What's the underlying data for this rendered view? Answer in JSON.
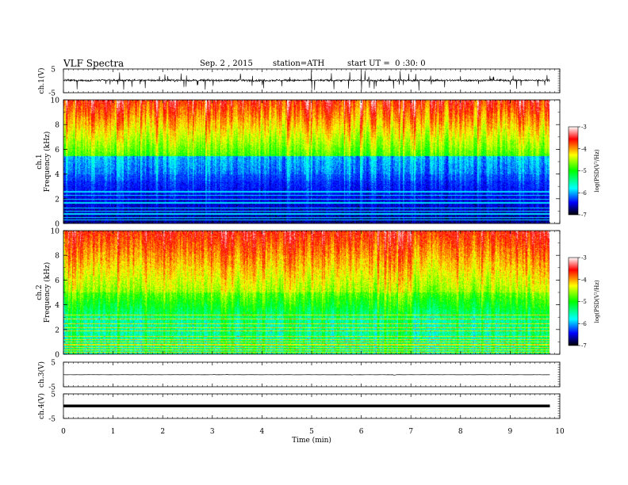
{
  "header": {
    "title": "VLF Spectra",
    "date": "Sep. 2 , 2015",
    "station": "station=ATH",
    "start_ut": "start UT =  0 :30: 0"
  },
  "chart_data": [
    {
      "type": "line",
      "panel": "ch1-waveform",
      "ylabel": "ch.1(V)",
      "ylim": [
        -5,
        5
      ],
      "y_ticks": [
        "5",
        "-5"
      ],
      "xlim": [
        0,
        10
      ]
    },
    {
      "type": "heatmap",
      "panel": "ch1-spectrogram",
      "ylabel_lines": [
        "ch.1",
        "Frequency  (kHz)"
      ],
      "ylim": [
        0,
        10
      ],
      "y_ticks": [
        0,
        2,
        4,
        6,
        8,
        10
      ],
      "xlim": [
        0,
        10
      ],
      "colorbar": {
        "label": "log(PSD(V²/Hz)",
        "range": [
          -7,
          -3
        ],
        "ticks": [
          "-3",
          "-4",
          "-5",
          "-6",
          "-7"
        ]
      }
    },
    {
      "type": "heatmap",
      "panel": "ch2-spectrogram",
      "ylabel_lines": [
        "ch.2",
        "Frequency  (kHz)"
      ],
      "ylim": [
        0,
        10
      ],
      "y_ticks": [
        0,
        2,
        4,
        6,
        8,
        10
      ],
      "xlim": [
        0,
        10
      ],
      "colorbar": {
        "label": "log(PSD(V²/Hz)",
        "range": [
          -7,
          -3
        ],
        "ticks": [
          "-3",
          "-4",
          "-5",
          "-6",
          "-7"
        ]
      }
    },
    {
      "type": "line",
      "panel": "ch3-waveform",
      "ylabel": "ch.3(V)",
      "ylim": [
        -5,
        5
      ],
      "y_ticks": [
        "5",
        "-5"
      ],
      "xlim": [
        0,
        10
      ]
    },
    {
      "type": "line",
      "panel": "ch4-waveform",
      "ylabel": "ch.4(V)",
      "ylim": [
        -5,
        5
      ],
      "y_ticks": [
        "5",
        "-5"
      ],
      "xlim": [
        0,
        10
      ]
    }
  ],
  "x_axis": {
    "label": "Time  (min)",
    "ticks": [
      0,
      1,
      2,
      3,
      4,
      5,
      6,
      7,
      8,
      9,
      10
    ],
    "data_end": 9.8
  },
  "colors": {
    "colormap": [
      "#000000",
      "#0000ff",
      "#00ffff",
      "#00ff00",
      "#ffff00",
      "#ff0000",
      "#ffffff"
    ]
  }
}
